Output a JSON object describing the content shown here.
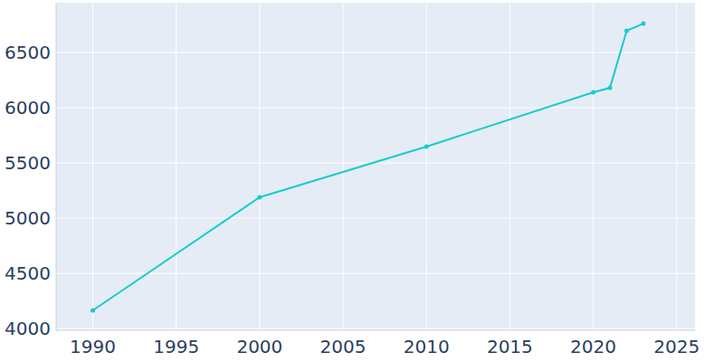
{
  "chart_data": {
    "type": "line",
    "x": [
      1990,
      2000,
      2010,
      2020,
      2021,
      2022,
      2023
    ],
    "series": [
      {
        "name": null,
        "color": "#17cccc",
        "values": [
          4164,
          5189,
          5648,
          6139,
          6180,
          6697,
          6762
        ],
        "marker": "circle"
      }
    ],
    "xlim": [
      1987.8,
      2026.1
    ],
    "xticks": [
      1990,
      1995,
      2000,
      2005,
      2010,
      2015,
      2020,
      2025
    ],
    "ylim": [
      3984,
      6951
    ],
    "yticks": [
      4000,
      4500,
      5000,
      5500,
      6000,
      6500
    ],
    "grid": true
  }
}
